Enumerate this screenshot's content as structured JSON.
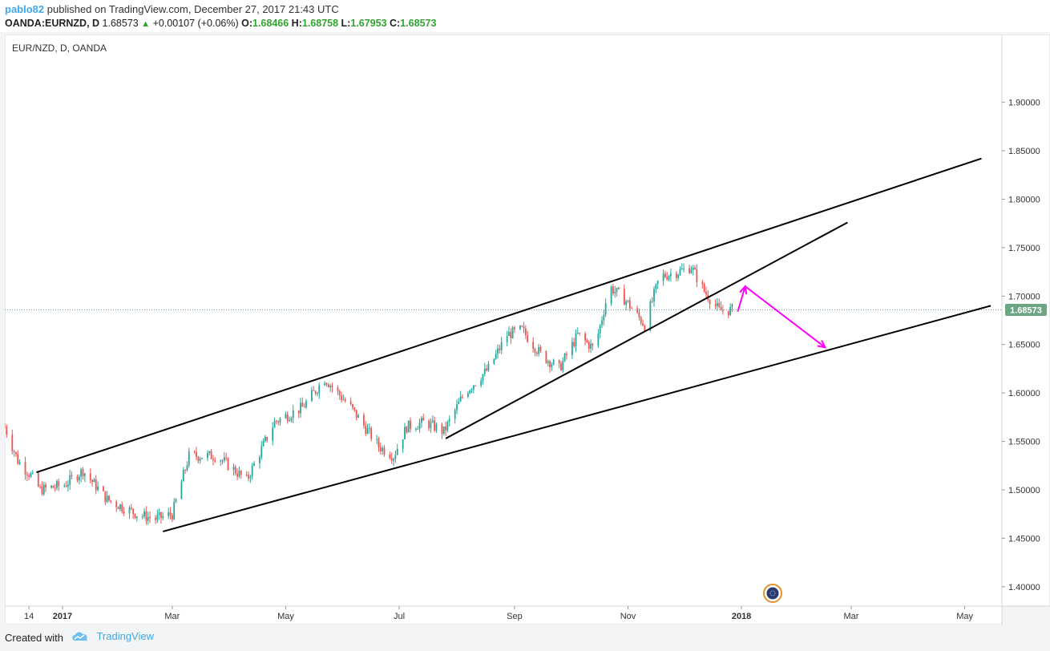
{
  "header": {
    "user": "pablo82",
    "published_text": "published on TradingView.com, December 27, 2017 21:43 UTC",
    "symbol": "OANDA:EURNZD, D",
    "last": "1.68573",
    "change": "+0.00107 (+0.06%)",
    "o_label": "O:",
    "o_value": "1.68466",
    "h_label": "H:",
    "h_value": "1.68758",
    "l_label": "L:",
    "l_value": "1.67953",
    "c_label": "C:",
    "c_value": "1.68573"
  },
  "footer": {
    "created_with": "Created with",
    "brand": "TradingView"
  },
  "colors": {
    "up": "#26a69a",
    "down": "#ef5350",
    "trendline": "#000000",
    "arrow": "#ff00ff",
    "price_tag": "#6ba583",
    "brand": "#3fa9e6"
  },
  "chart_data": {
    "type": "candlestick",
    "title": "EUR/NZD, D, OANDA",
    "ylim": [
      1.38,
      1.97
    ],
    "yticks": [
      "1.90000",
      "1.85000",
      "1.80000",
      "1.75000",
      "1.70000",
      "1.65000",
      "1.60000",
      "1.55000",
      "1.50000",
      "1.45000",
      "1.40000"
    ],
    "xlim": [
      "2016-12-01",
      "2018-05-21"
    ],
    "xticks": [
      {
        "date": "2016-12-14",
        "label": "14"
      },
      {
        "date": "2017-01-01",
        "label": "2017"
      },
      {
        "date": "2017-03-01",
        "label": "Mar"
      },
      {
        "date": "2017-05-01",
        "label": "May"
      },
      {
        "date": "2017-07-01",
        "label": "Jul"
      },
      {
        "date": "2017-09-01",
        "label": "Sep"
      },
      {
        "date": "2017-11-01",
        "label": "Nov"
      },
      {
        "date": "2018-01-01",
        "label": "2018"
      },
      {
        "date": "2018-03-01",
        "label": "Mar"
      },
      {
        "date": "2018-05-01",
        "label": "May"
      }
    ],
    "current_price": 1.68573,
    "current_price_label": "1.68573",
    "price_anchors": [
      [
        "2016-12-01",
        1.565
      ],
      [
        "2016-12-08",
        1.53
      ],
      [
        "2016-12-15",
        1.515
      ],
      [
        "2016-12-20",
        1.5
      ],
      [
        "2017-01-02",
        1.505
      ],
      [
        "2017-01-12",
        1.52
      ],
      [
        "2017-01-25",
        1.49
      ],
      [
        "2017-02-10",
        1.475
      ],
      [
        "2017-02-20",
        1.47
      ],
      [
        "2017-03-01",
        1.475
      ],
      [
        "2017-03-10",
        1.535
      ],
      [
        "2017-03-25",
        1.535
      ],
      [
        "2017-04-10",
        1.51
      ],
      [
        "2017-04-25",
        1.57
      ],
      [
        "2017-05-10",
        1.585
      ],
      [
        "2017-05-22",
        1.615
      ],
      [
        "2017-06-05",
        1.585
      ],
      [
        "2017-06-20",
        1.545
      ],
      [
        "2017-06-28",
        1.535
      ],
      [
        "2017-07-05",
        1.565
      ],
      [
        "2017-07-15",
        1.57
      ],
      [
        "2017-07-25",
        1.56
      ],
      [
        "2017-08-05",
        1.6
      ],
      [
        "2017-08-18",
        1.625
      ],
      [
        "2017-08-28",
        1.66
      ],
      [
        "2017-09-05",
        1.665
      ],
      [
        "2017-09-15",
        1.64
      ],
      [
        "2017-09-25",
        1.625
      ],
      [
        "2017-10-05",
        1.66
      ],
      [
        "2017-10-14",
        1.645
      ],
      [
        "2017-10-22",
        1.71
      ],
      [
        "2017-10-31",
        1.695
      ],
      [
        "2017-11-10",
        1.67
      ],
      [
        "2017-11-18",
        1.72
      ],
      [
        "2017-11-28",
        1.725
      ],
      [
        "2017-12-05",
        1.73
      ],
      [
        "2017-12-12",
        1.705
      ],
      [
        "2017-12-20",
        1.685
      ],
      [
        "2017-12-27",
        1.68573
      ]
    ],
    "trendlines": [
      {
        "from": [
          "2016-12-18",
          1.518
        ],
        "to": [
          "2018-05-10",
          1.842
        ]
      },
      {
        "from": [
          "2017-02-24",
          1.457
        ],
        "to": [
          "2018-05-15",
          1.69
        ]
      },
      {
        "from": [
          "2017-07-26",
          1.553
        ],
        "to": [
          "2018-02-27",
          1.776
        ]
      }
    ],
    "arrows": [
      {
        "from": [
          "2017-12-30",
          1.684
        ],
        "to": [
          "2018-01-03",
          1.71
        ]
      },
      {
        "from": [
          "2018-01-03",
          1.71
        ],
        "to": [
          "2018-02-15",
          1.647
        ]
      }
    ]
  }
}
